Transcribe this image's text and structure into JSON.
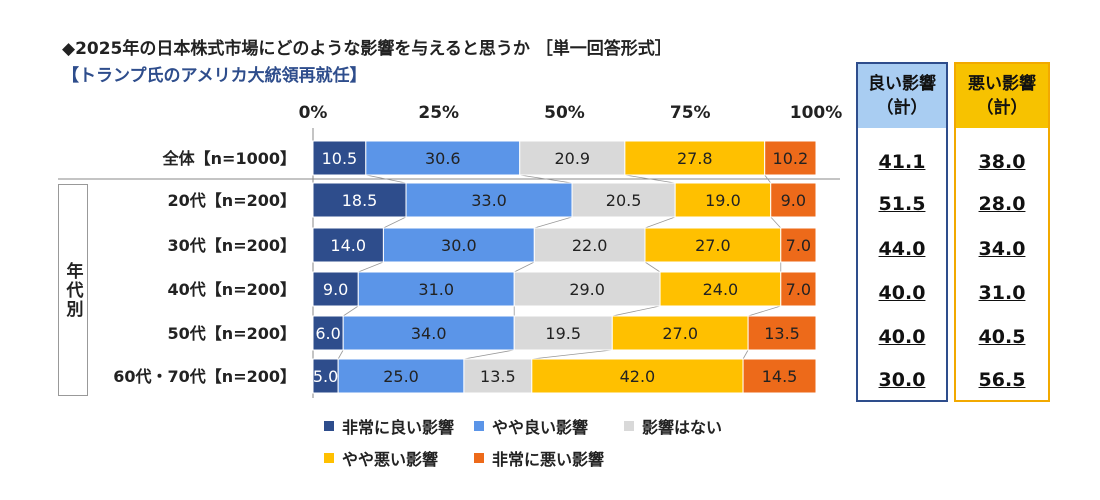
{
  "title": "◆2025年の日本株式市場にどのような影響を与えると思うか ［単一回答形式］",
  "subtitle": "【トランプ氏のアメリカ大統領再就任】",
  "age_group_label": "年代別",
  "chart_data": {
    "type": "bar",
    "orientation": "horizontal",
    "stacked": "percent",
    "x_ticks": [
      "0%",
      "25%",
      "50%",
      "75%",
      "100%"
    ],
    "xlim": [
      0,
      100
    ],
    "categories": [
      "全体【n=1000】",
      "20代【n=200】",
      "30代【n=200】",
      "40代【n=200】",
      "50代【n=200】",
      "60代・70代【n=200】"
    ],
    "series": [
      {
        "name": "非常に良い影響",
        "color": "#2e4d8c",
        "label_color": "#ffffff",
        "values": [
          10.5,
          18.5,
          14.0,
          9.0,
          6.0,
          5.0
        ]
      },
      {
        "name": "やや良い影響",
        "color": "#5b95e8",
        "label_color": "#222222",
        "values": [
          30.6,
          33.0,
          30.0,
          31.0,
          34.0,
          25.0
        ]
      },
      {
        "name": "影響はない",
        "color": "#d9d9d9",
        "label_color": "#222222",
        "values": [
          20.9,
          20.5,
          22.0,
          29.0,
          19.5,
          13.5
        ]
      },
      {
        "name": "やや悪い影響",
        "color": "#ffc000",
        "label_color": "#222222",
        "values": [
          27.8,
          19.0,
          27.0,
          24.0,
          27.0,
          42.0
        ]
      },
      {
        "name": "非常に悪い影響",
        "color": "#ed6a1a",
        "label_color": "#222222",
        "values": [
          10.2,
          9.0,
          7.0,
          7.0,
          13.5,
          14.5
        ]
      }
    ],
    "legend_position": "bottom",
    "summary_columns": [
      {
        "label_line1": "良い影響",
        "label_line2": "（計）",
        "values": [
          "41.1",
          "51.5",
          "44.0",
          "40.0",
          "40.0",
          "30.0"
        ]
      },
      {
        "label_line1": "悪い影響",
        "label_line2": "（計）",
        "values": [
          "38.0",
          "28.0",
          "34.0",
          "31.0",
          "40.5",
          "56.5"
        ]
      }
    ]
  }
}
